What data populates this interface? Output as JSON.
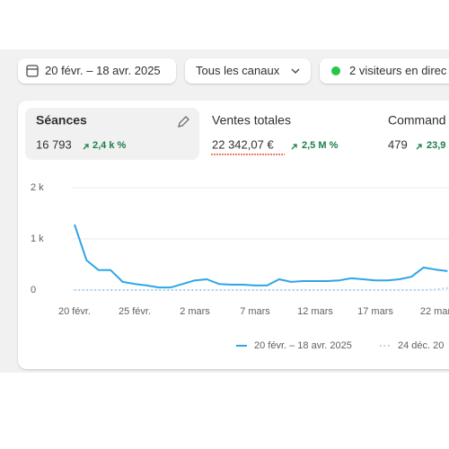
{
  "toolbar": {
    "date_range": "20 févr. – 18 avr. 2025",
    "channels": "Tous les canaux",
    "live_visitors": "2 visiteurs en direc"
  },
  "metrics": [
    {
      "label": "Séances",
      "value": "16 793",
      "change": "2,4 k %"
    },
    {
      "label": "Ventes totales",
      "value": "22 342,07 €",
      "change": "2,5 M %"
    },
    {
      "label": "Command",
      "value": "479",
      "change": "23,9"
    }
  ],
  "chart_data": {
    "type": "line",
    "categories": [
      "20 févr.",
      null,
      null,
      null,
      null,
      "25 févr.",
      null,
      null,
      null,
      null,
      "2 mars",
      null,
      null,
      null,
      null,
      "7 mars",
      null,
      null,
      null,
      null,
      "12 mars",
      null,
      null,
      null,
      null,
      "17 mars",
      null,
      null,
      null,
      null,
      "22 mar",
      null
    ],
    "series": [
      {
        "name": "20 févr. – 18 avr. 2025",
        "color": "#2ea5e9",
        "style": "solid",
        "values": [
          1280,
          580,
          390,
          390,
          160,
          120,
          90,
          50,
          50,
          120,
          190,
          210,
          120,
          105,
          105,
          90,
          90,
          210,
          160,
          175,
          175,
          175,
          190,
          230,
          210,
          190,
          190,
          210,
          260,
          440,
          400,
          370
        ]
      },
      {
        "name": "24 déc. 20",
        "color": "#9ccfee",
        "style": "dotted",
        "values": [
          0,
          0,
          0,
          0,
          0,
          0,
          0,
          0,
          0,
          0,
          0,
          0,
          0,
          0,
          0,
          0,
          0,
          0,
          0,
          0,
          0,
          0,
          0,
          0,
          0,
          0,
          0,
          0,
          0,
          0,
          10,
          40
        ]
      }
    ],
    "ylim": [
      0,
      2000
    ],
    "yticks": [
      0,
      {
        "value": 1000,
        "label": "1 k"
      },
      {
        "value": 2000,
        "label": "2 k"
      }
    ],
    "grid": true,
    "legend": "bottom"
  }
}
